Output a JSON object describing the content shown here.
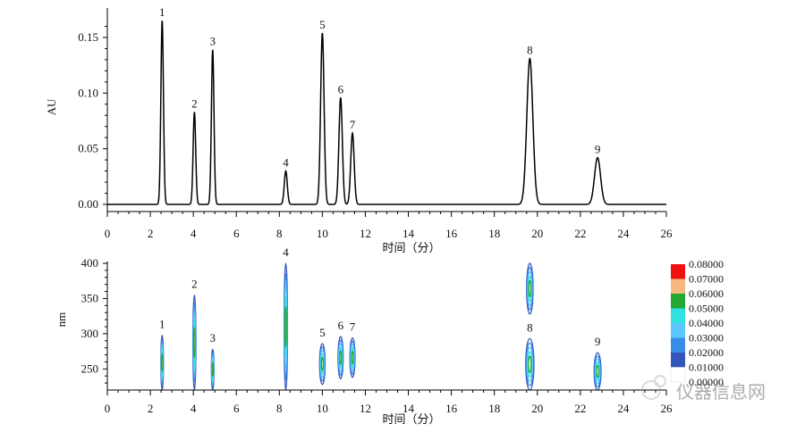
{
  "chart_data": [
    {
      "type": "line",
      "ylabel": "AU",
      "xlabel": "时间（分）",
      "xlim": [
        0,
        26
      ],
      "ylim": [
        -0.005,
        0.17
      ],
      "xticks": [
        0,
        2,
        4,
        6,
        8,
        10,
        12,
        14,
        16,
        18,
        20,
        22,
        24,
        26
      ],
      "yticks": [
        0.0,
        0.05,
        0.1,
        0.15
      ],
      "ytick_labels": [
        "0.00",
        "0.05",
        "0.10",
        "0.15"
      ],
      "grid": false,
      "peaks": [
        {
          "label": "1",
          "x": 2.55,
          "y": 0.165,
          "width": 0.06
        },
        {
          "label": "2",
          "x": 4.05,
          "y": 0.083,
          "width": 0.06
        },
        {
          "label": "3",
          "x": 4.9,
          "y": 0.139,
          "width": 0.06
        },
        {
          "label": "4",
          "x": 8.3,
          "y": 0.03,
          "width": 0.07
        },
        {
          "label": "5",
          "x": 10.0,
          "y": 0.154,
          "width": 0.08
        },
        {
          "label": "6",
          "x": 10.85,
          "y": 0.096,
          "width": 0.08
        },
        {
          "label": "7",
          "x": 11.4,
          "y": 0.064,
          "width": 0.08
        },
        {
          "label": "8",
          "x": 19.65,
          "y": 0.131,
          "width": 0.14
        },
        {
          "label": "9",
          "x": 22.8,
          "y": 0.042,
          "width": 0.14
        }
      ]
    },
    {
      "type": "heatmap",
      "ylabel": "nm",
      "xlabel": "时间（分）",
      "xlim": [
        0,
        26
      ],
      "ylim": [
        220,
        400
      ],
      "xticks": [
        0,
        2,
        4,
        6,
        8,
        10,
        12,
        14,
        16,
        18,
        20,
        22,
        24,
        26
      ],
      "yticks": [
        250,
        300,
        350,
        400
      ],
      "grid": false,
      "peaks": [
        {
          "label": "1",
          "x": 2.55,
          "y_range": [
            220,
            298
          ],
          "width": 0.12
        },
        {
          "label": "2",
          "x": 4.05,
          "y_range": [
            220,
            355
          ],
          "width": 0.14
        },
        {
          "label": "3",
          "x": 4.9,
          "y_range": [
            220,
            278
          ],
          "width": 0.12
        },
        {
          "label": "4",
          "x": 8.3,
          "y_range": [
            220,
            400
          ],
          "width": 0.16
        },
        {
          "label": "5",
          "x": 10.0,
          "y_range": [
            228,
            286
          ],
          "width": 0.26
        },
        {
          "label": "6",
          "x": 10.85,
          "y_range": [
            236,
            296
          ],
          "width": 0.24
        },
        {
          "label": "7",
          "x": 11.4,
          "y_range": [
            238,
            294
          ],
          "width": 0.24
        },
        {
          "label": "8",
          "x": 19.65,
          "y_range": [
            220,
            293
          ],
          "width": 0.38
        },
        {
          "label": "8",
          "x": 19.65,
          "y_range": [
            328,
            400
          ],
          "width": 0.3,
          "unlabeled": true
        },
        {
          "label": "9",
          "x": 22.8,
          "y_range": [
            220,
            273
          ],
          "width": 0.32
        }
      ],
      "colorbar": {
        "labels": [
          "0.08000",
          "0.07000",
          "0.06000",
          "0.05000",
          "0.04000",
          "0.03000",
          "0.02000",
          "0.01000",
          "0.00000"
        ],
        "colors": [
          "#ee1111",
          "#f5b880",
          "#22a833",
          "#33e0e0",
          "#5cc7ff",
          "#3a8ce8",
          "#3355bb",
          "#ffffff"
        ]
      }
    }
  ],
  "watermark": "仪器信息网"
}
